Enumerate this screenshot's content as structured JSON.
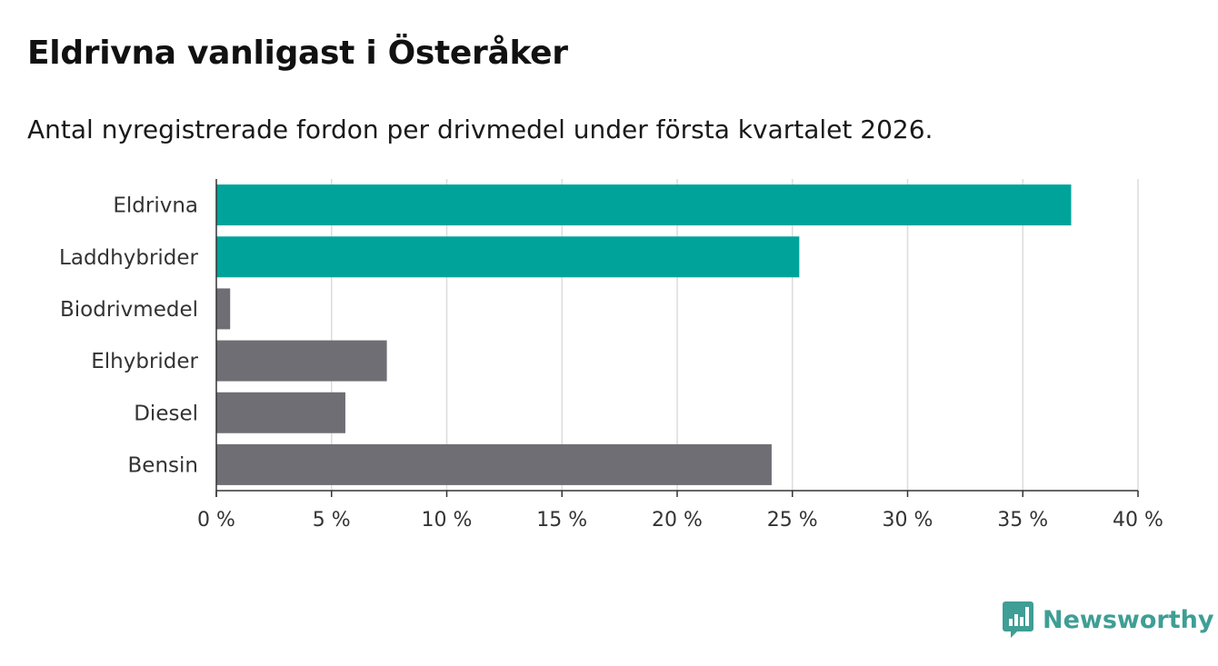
{
  "header": {
    "title": "Eldrivna vanligast i Österåker",
    "subtitle": "Antal nyregistrerade fordon per drivmedel under första kvartalet 2026."
  },
  "chart_data": {
    "type": "bar",
    "orientation": "horizontal",
    "title": "Eldrivna vanligast i Österåker",
    "subtitle": "Antal nyregistrerade fordon per drivmedel under första kvartalet 2026.",
    "xlabel": "",
    "ylabel": "",
    "unit": "%",
    "categories": [
      "Eldrivna",
      "Laddhybrider",
      "Biodrivmedel",
      "Elhybrider",
      "Diesel",
      "Bensin"
    ],
    "values": [
      37.1,
      25.3,
      0.6,
      7.4,
      5.6,
      24.1
    ],
    "highlighted": [
      true,
      true,
      false,
      false,
      false,
      false
    ],
    "xlim": [
      0,
      40
    ],
    "ticks": [
      0,
      5,
      10,
      15,
      20,
      25,
      30,
      35,
      40
    ],
    "tick_labels": [
      "0 %",
      "5 %",
      "10 %",
      "15 %",
      "20 %",
      "25 %",
      "30 %",
      "35 %",
      "40 %"
    ],
    "grid": true,
    "colors": {
      "highlight": "#00a39a",
      "default": "#6f6e74",
      "grid": "#dcdcdc",
      "axis": "#333333"
    }
  },
  "brand": {
    "name": "Newsworthy",
    "icon": "newsworthy-logo-icon",
    "color": "#3f9e95"
  }
}
